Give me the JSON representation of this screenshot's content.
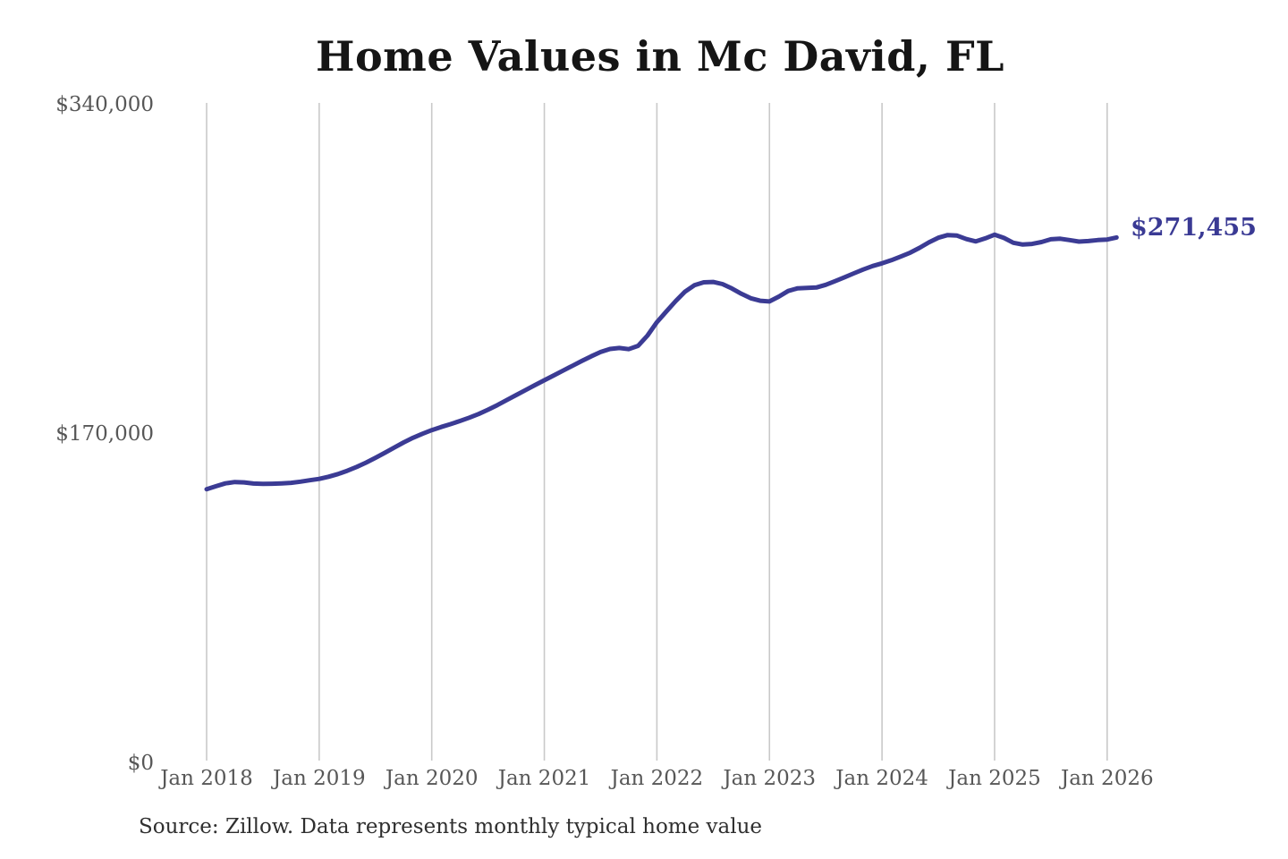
{
  "title": "Home Values in Mc David, FL",
  "end_label": "$271,455",
  "source_note": "Source: Zillow. Data represents monthly typical home value",
  "colors": {
    "line": "#3b3b94",
    "grid": "#c9c9c9",
    "axis_text": "#575757",
    "title_text": "#151515",
    "source_text": "#2f2f2f",
    "end_label_text": "#3a3a94",
    "background": "#ffffff"
  },
  "chart_data": {
    "type": "line",
    "title": "Home Values in Mc David, FL",
    "xlabel": "",
    "ylabel": "",
    "ylim": [
      0,
      340000
    ],
    "grid": "vertical-only",
    "legend": "none",
    "series_name": "Monthly typical home value",
    "final_value": 271455,
    "final_value_label": "$271,455",
    "y_tick_values": [
      0,
      170000,
      340000
    ],
    "y_tick_labels": [
      "$0",
      "$170,000",
      "$340,000"
    ],
    "x_tick_labels": [
      "Jan 2018",
      "Jan 2019",
      "Jan 2020",
      "Jan 2021",
      "Jan 2022",
      "Jan 2023",
      "Jan 2024",
      "Jan 2025",
      "Jan 2026"
    ],
    "months": [
      "2018-01",
      "2018-02",
      "2018-03",
      "2018-04",
      "2018-05",
      "2018-06",
      "2018-07",
      "2018-08",
      "2018-09",
      "2018-10",
      "2018-11",
      "2018-12",
      "2019-01",
      "2019-02",
      "2019-03",
      "2019-04",
      "2019-05",
      "2019-06",
      "2019-07",
      "2019-08",
      "2019-09",
      "2019-10",
      "2019-11",
      "2019-12",
      "2020-01",
      "2020-02",
      "2020-03",
      "2020-04",
      "2020-05",
      "2020-06",
      "2020-07",
      "2020-08",
      "2020-09",
      "2020-10",
      "2020-11",
      "2020-12",
      "2021-01",
      "2021-02",
      "2021-03",
      "2021-04",
      "2021-05",
      "2021-06",
      "2021-07",
      "2021-08",
      "2021-09",
      "2021-10",
      "2021-11",
      "2021-12",
      "2022-01",
      "2022-02",
      "2022-03",
      "2022-04",
      "2022-05",
      "2022-06",
      "2022-07",
      "2022-08",
      "2022-09",
      "2022-10",
      "2022-11",
      "2022-12",
      "2023-01",
      "2023-02",
      "2023-03",
      "2023-04",
      "2023-05",
      "2023-06",
      "2023-07",
      "2023-08",
      "2023-09",
      "2023-10",
      "2023-11",
      "2023-12",
      "2024-01",
      "2024-02",
      "2024-03",
      "2024-04",
      "2024-05",
      "2024-06",
      "2024-07",
      "2024-08",
      "2024-09",
      "2024-10",
      "2024-11",
      "2024-12",
      "2025-01",
      "2025-02",
      "2025-03",
      "2025-04",
      "2025-05",
      "2025-06",
      "2025-07",
      "2025-08",
      "2025-09",
      "2025-10",
      "2025-11",
      "2025-12",
      "2026-01",
      "2026-02"
    ],
    "values": [
      141500,
      143000,
      144500,
      145200,
      145000,
      144400,
      144200,
      144300,
      144500,
      144800,
      145400,
      146100,
      146800,
      147900,
      149300,
      151000,
      153000,
      155200,
      157700,
      160300,
      163000,
      165600,
      168000,
      170100,
      172000,
      173600,
      175100,
      176700,
      178400,
      180300,
      182500,
      184900,
      187500,
      190100,
      192700,
      195200,
      197700,
      200200,
      202700,
      205200,
      207700,
      210100,
      212300,
      213900,
      214400,
      213800,
      215500,
      220800,
      227700,
      233200,
      238600,
      243500,
      246800,
      248300,
      248500,
      247400,
      245100,
      242400,
      240100,
      238800,
      238400,
      240900,
      243800,
      245200,
      245400,
      245600,
      247000,
      248900,
      250900,
      252900,
      254900,
      256700,
      258100,
      259700,
      261600,
      263600,
      266100,
      268900,
      271300,
      272700,
      272400,
      270600,
      269400,
      271000,
      272900,
      271200,
      268700,
      267800,
      268100,
      269100,
      270500,
      270800,
      270100,
      269300,
      269600,
      270100,
      270400,
      271455
    ]
  }
}
